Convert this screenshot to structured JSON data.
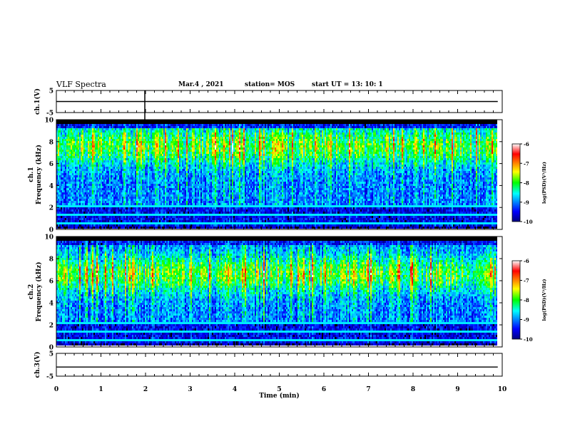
{
  "header": {
    "title": "VLF Spectra",
    "date": "Mar.4 , 2021",
    "station": "station= MOS",
    "start": "start  UT =  13: 10: 1"
  },
  "chart_data": [
    {
      "type": "line",
      "panel": "ch1-waveform",
      "ylabel": "ch.1(V)",
      "ylim": [
        -5,
        5
      ],
      "yticks": [
        "5",
        "-5"
      ],
      "xlim": [
        0,
        10
      ],
      "series": [
        {
          "x": [
            0,
            9.9
          ],
          "y": [
            0,
            0
          ]
        }
      ]
    },
    {
      "type": "heatmap",
      "panel": "ch1-spectrogram",
      "ylabel": "ch.1\nFrequency (kHz)",
      "ylim": [
        0,
        10
      ],
      "yticks": [
        "0",
        "2",
        "4",
        "6",
        "8",
        "10"
      ],
      "xlim": [
        0,
        10
      ],
      "data_end_min": 9.9,
      "colorbar": {
        "label": "log(PSD)(V²/Hz)",
        "range": [
          -10,
          -6
        ],
        "ticks": [
          "-6",
          "-7",
          "-8",
          "-9",
          "-10"
        ]
      }
    },
    {
      "type": "heatmap",
      "panel": "ch2-spectrogram",
      "ylabel": "ch.2\nFrequency (kHz)",
      "ylim": [
        0,
        10
      ],
      "yticks": [
        "0",
        "2",
        "4",
        "6",
        "8",
        "10"
      ],
      "xlim": [
        0,
        10
      ],
      "data_end_min": 9.9,
      "colorbar": {
        "label": "log(PSD)(V²/Hz)",
        "range": [
          -10,
          -6
        ],
        "ticks": [
          "-6",
          "-7",
          "-8",
          "-9",
          "-10"
        ]
      }
    },
    {
      "type": "line",
      "panel": "ch3-waveform",
      "ylabel": "ch.3(V)",
      "ylim": [
        -5,
        5
      ],
      "yticks": [
        "5",
        "-5"
      ],
      "xlim": [
        0,
        10
      ],
      "xlabel": "Time  (min)",
      "xticks": [
        "0",
        "1",
        "2",
        "3",
        "4",
        "5",
        "6",
        "7",
        "8",
        "9",
        "10"
      ],
      "series": [
        {
          "x": [
            0,
            9.9
          ],
          "y": [
            -1,
            -1
          ]
        }
      ]
    }
  ]
}
